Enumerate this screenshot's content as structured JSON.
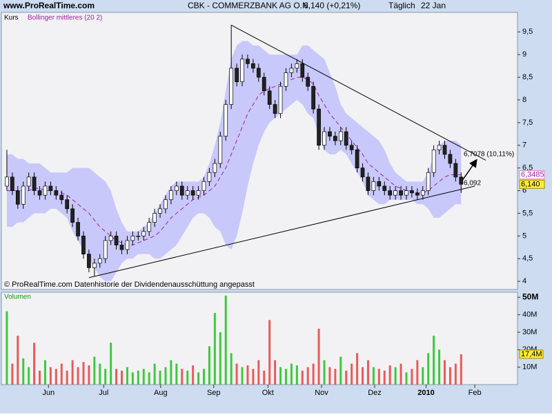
{
  "header": {
    "site": "www.ProRealTime.com",
    "title": "CBK - COMMERZBANK AG O.N.",
    "quote": "6,140 (+0,21%)",
    "period": "Täglich",
    "date": "22 Jan"
  },
  "chart_data": [
    {
      "type": "candlestick",
      "footnote": "© ProRealTime.com  Datenhistorie der Dividendenausschüttung angepasst",
      "xlim": [
        -1,
        93.3
      ],
      "ylim": [
        3.82,
        9.93
      ],
      "yticks": [
        4,
        {
          "value": 4.5,
          "label": "4,5"
        },
        5,
        {
          "value": 5.5,
          "label": "5,5"
        },
        6,
        {
          "value": 6.5,
          "label": "6,5"
        },
        7,
        {
          "value": 7.5,
          "label": "7,5"
        },
        8,
        {
          "value": 8.5,
          "label": "8,5"
        },
        9,
        {
          "value": 9.5,
          "label": "9,5"
        }
      ],
      "up_color": "#ffffff",
      "down_color": "#222222",
      "band_color": "#c8c8fa",
      "series": [
        {
          "name": "Kurs",
          "last_label": "6,140",
          "color": "#000000",
          "open": [
            6.1,
            6.3,
            6.0,
            5.7,
            6.1,
            6.3,
            6.0,
            5.9,
            6.1,
            6.0,
            5.9,
            5.8,
            5.6,
            5.3,
            5.0,
            4.6,
            4.3,
            4.4,
            4.5,
            4.9,
            5.0,
            4.8,
            4.7,
            4.9,
            5.0,
            5.0,
            5.1,
            5.3,
            5.5,
            5.6,
            5.8,
            6.0,
            6.1,
            5.9,
            6.0,
            5.9,
            6.0,
            6.2,
            6.4,
            6.6,
            7.2,
            7.9,
            8.7,
            8.4,
            8.9,
            8.8,
            8.7,
            8.5,
            8.2,
            7.9,
            7.7,
            8.3,
            8.6,
            8.7,
            8.8,
            8.5,
            8.3,
            7.8,
            7.0,
            7.3,
            7.2,
            7.1,
            7.3,
            7.0,
            6.9,
            6.5,
            6.3,
            6.0,
            6.2,
            6.1,
            6.0,
            5.9,
            6.0,
            5.9,
            6.0,
            5.95,
            5.9,
            6.0,
            6.4,
            6.9,
            7.0,
            6.8,
            6.6,
            6.3
          ],
          "high": [
            6.9,
            6.4,
            6.1,
            6.2,
            6.4,
            6.4,
            6.1,
            6.2,
            6.2,
            6.1,
            6.0,
            5.9,
            5.7,
            5.4,
            5.1,
            4.7,
            4.5,
            4.6,
            5.0,
            5.1,
            5.1,
            4.9,
            5.0,
            5.1,
            5.1,
            5.2,
            5.4,
            5.6,
            5.7,
            5.9,
            6.1,
            6.2,
            6.2,
            6.1,
            6.1,
            6.1,
            6.3,
            6.5,
            6.7,
            7.3,
            8.0,
            9.65,
            8.8,
            9.0,
            9.0,
            8.9,
            8.8,
            8.6,
            8.3,
            8.0,
            8.4,
            8.7,
            8.8,
            8.9,
            8.9,
            8.6,
            8.4,
            7.9,
            7.4,
            7.4,
            7.3,
            7.4,
            7.4,
            7.1,
            7.0,
            6.6,
            6.4,
            6.3,
            6.3,
            6.2,
            6.1,
            6.1,
            6.1,
            6.1,
            6.1,
            6.05,
            6.1,
            6.5,
            7.0,
            7.1,
            7.1,
            6.9,
            6.7,
            6.4
          ],
          "low": [
            6.0,
            5.9,
            5.6,
            5.6,
            6.0,
            5.9,
            5.8,
            5.8,
            5.9,
            5.8,
            5.7,
            5.5,
            5.2,
            4.9,
            4.5,
            4.2,
            4.12,
            4.3,
            4.4,
            4.8,
            4.7,
            4.6,
            4.6,
            4.8,
            4.9,
            4.9,
            5.0,
            5.2,
            5.4,
            5.5,
            5.7,
            5.9,
            5.8,
            5.8,
            5.8,
            5.8,
            5.9,
            6.1,
            6.3,
            6.5,
            7.1,
            7.8,
            8.3,
            8.3,
            8.7,
            8.6,
            8.4,
            8.1,
            7.8,
            7.6,
            7.6,
            8.2,
            8.5,
            8.6,
            8.4,
            8.2,
            7.7,
            6.9,
            6.9,
            7.1,
            7.0,
            7.0,
            6.9,
            6.8,
            6.4,
            6.2,
            5.9,
            5.9,
            6.0,
            5.9,
            5.8,
            5.8,
            5.8,
            5.8,
            5.85,
            5.8,
            5.8,
            5.9,
            6.3,
            6.8,
            6.7,
            6.5,
            6.2,
            5.95
          ],
          "close": [
            6.3,
            6.0,
            5.7,
            6.1,
            6.3,
            6.0,
            5.9,
            6.1,
            6.0,
            5.9,
            5.8,
            5.6,
            5.3,
            5.0,
            4.6,
            4.3,
            4.4,
            4.5,
            4.9,
            5.0,
            4.8,
            4.7,
            4.9,
            5.0,
            5.0,
            5.1,
            5.3,
            5.5,
            5.6,
            5.8,
            6.0,
            6.1,
            5.9,
            6.0,
            5.9,
            6.0,
            6.2,
            6.4,
            6.6,
            7.2,
            7.9,
            8.7,
            8.4,
            8.9,
            8.8,
            8.7,
            8.5,
            8.2,
            7.9,
            7.7,
            8.3,
            8.6,
            8.7,
            8.8,
            8.5,
            8.3,
            7.8,
            7.0,
            7.3,
            7.2,
            7.1,
            7.3,
            7.0,
            6.9,
            6.5,
            6.3,
            6.0,
            6.2,
            6.1,
            6.0,
            5.9,
            6.0,
            5.9,
            6.0,
            5.95,
            5.9,
            6.0,
            6.4,
            6.9,
            7.0,
            6.8,
            6.6,
            6.3,
            6.14
          ]
        },
        {
          "name": "Bollinger mittleres (20 2)",
          "last_label": "6,3485",
          "color": "#a020a0",
          "values": [
            6.0,
            6.0,
            6.0,
            6.0,
            6.0,
            6.05,
            6.05,
            6.0,
            6.0,
            6.0,
            5.95,
            5.9,
            5.8,
            5.7,
            5.6,
            5.5,
            5.35,
            5.2,
            5.1,
            5.0,
            4.9,
            4.85,
            4.8,
            4.8,
            4.85,
            4.9,
            4.95,
            5.0,
            5.1,
            5.25,
            5.4,
            5.5,
            5.6,
            5.7,
            5.8,
            5.85,
            5.9,
            6.0,
            6.1,
            6.3,
            6.5,
            6.8,
            7.1,
            7.4,
            7.7,
            7.9,
            8.1,
            8.2,
            8.25,
            8.3,
            8.35,
            8.4,
            8.45,
            8.5,
            8.5,
            8.45,
            8.35,
            8.1,
            7.9,
            7.7,
            7.55,
            7.4,
            7.25,
            7.1,
            6.95,
            6.8,
            6.6,
            6.5,
            6.4,
            6.3,
            6.2,
            6.1,
            6.05,
            6.0,
            6.0,
            5.95,
            5.95,
            6.0,
            6.1,
            6.2,
            6.3,
            6.35,
            6.35,
            6.3485
          ],
          "upper": [
            6.8,
            6.8,
            6.7,
            6.7,
            6.6,
            6.6,
            6.6,
            6.5,
            6.4,
            6.4,
            6.4,
            6.4,
            6.5,
            6.5,
            6.5,
            6.5,
            6.4,
            6.3,
            6.2,
            6.0,
            5.6,
            5.3,
            5.1,
            5.1,
            5.1,
            5.2,
            5.3,
            5.5,
            5.7,
            5.9,
            6.1,
            6.2,
            6.2,
            6.2,
            6.2,
            6.2,
            6.3,
            6.6,
            7.0,
            7.5,
            8.2,
            8.9,
            9.2,
            9.3,
            9.3,
            9.2,
            9.2,
            9.1,
            9.0,
            9.0,
            9.0,
            9.0,
            9.0,
            9.0,
            9.2,
            9.2,
            9.1,
            9.0,
            8.9,
            8.6,
            8.3,
            7.9,
            7.7,
            7.6,
            7.5,
            7.4,
            7.3,
            7.2,
            7.1,
            6.9,
            6.6,
            6.4,
            6.3,
            6.2,
            6.2,
            6.2,
            6.2,
            6.4,
            6.8,
            7.0,
            7.1,
            7.1,
            7.1,
            7.0
          ],
          "lower": [
            5.2,
            5.2,
            5.3,
            5.3,
            5.4,
            5.5,
            5.5,
            5.5,
            5.6,
            5.6,
            5.5,
            5.4,
            5.1,
            4.9,
            4.7,
            4.5,
            4.3,
            4.1,
            4.0,
            4.0,
            4.2,
            4.4,
            4.5,
            4.5,
            4.6,
            4.6,
            4.6,
            4.5,
            4.5,
            4.6,
            4.7,
            4.8,
            5.0,
            5.2,
            5.4,
            5.5,
            5.5,
            5.4,
            5.2,
            5.1,
            4.8,
            4.7,
            5.0,
            5.5,
            6.1,
            6.6,
            7.0,
            7.3,
            7.5,
            7.6,
            7.7,
            7.8,
            7.9,
            8.0,
            7.9,
            7.7,
            7.6,
            7.2,
            6.9,
            6.8,
            6.8,
            6.9,
            6.8,
            6.6,
            6.4,
            6.2,
            5.9,
            5.8,
            5.7,
            5.7,
            5.8,
            5.8,
            5.8,
            5.8,
            5.8,
            5.7,
            5.7,
            5.6,
            5.4,
            5.4,
            5.5,
            5.6,
            5.7,
            5.7
          ]
        }
      ],
      "trendlines": [
        {
          "x": [
            41,
            87.5
          ],
          "y": [
            9.65,
            6.67
          ]
        },
        {
          "x": [
            15,
            85.5
          ],
          "y": [
            4.08,
            6.1
          ]
        }
      ],
      "annotations": [
        "6,7078 (10,11%)",
        "6,092"
      ]
    },
    {
      "type": "bar",
      "title": "Volumen",
      "last_label": "17,4M",
      "up_color": "#3ec83e",
      "down_color": "#e85a5a",
      "label_color": "#119911",
      "xlim": [
        -1,
        93.3
      ],
      "ylim": [
        0,
        52.5
      ],
      "yticks": [
        {
          "value": 10,
          "label": "10M"
        },
        {
          "value": 20,
          "label": "20M"
        },
        {
          "value": 30,
          "label": "30M"
        },
        {
          "value": 40,
          "label": "40M"
        },
        {
          "value": 50,
          "label": "50M"
        }
      ],
      "xticks": [
        {
          "value": 7.6,
          "label": "Jun"
        },
        {
          "value": 17.7,
          "label": "Jul"
        },
        {
          "value": 28.1,
          "label": "Aug"
        },
        {
          "value": 37.8,
          "label": "Sep"
        },
        {
          "value": 47.7,
          "label": "Okt"
        },
        {
          "value": 57.5,
          "label": "Nov"
        },
        {
          "value": 67.2,
          "label": "Dez"
        },
        {
          "value": 76.6,
          "label": "2010"
        },
        {
          "value": 85.5,
          "label": "Feb"
        }
      ],
      "values": [
        42,
        12,
        28,
        15,
        10,
        24,
        8,
        14,
        10,
        9,
        12,
        8,
        14,
        10,
        13,
        11,
        16,
        12,
        9,
        24,
        9,
        8,
        10,
        7,
        8,
        9,
        7,
        12,
        8,
        10,
        14,
        12,
        9,
        8,
        11,
        7,
        9,
        22,
        41,
        30,
        51,
        18,
        12,
        10,
        11,
        9,
        14,
        8,
        37,
        14,
        10,
        9,
        12,
        11,
        8,
        10,
        12,
        32,
        14,
        10,
        9,
        16,
        8,
        12,
        18,
        10,
        14,
        10,
        9,
        8,
        11,
        10,
        12,
        7,
        9,
        14,
        10,
        18,
        28,
        20,
        14,
        10,
        12,
        17.4
      ]
    }
  ]
}
